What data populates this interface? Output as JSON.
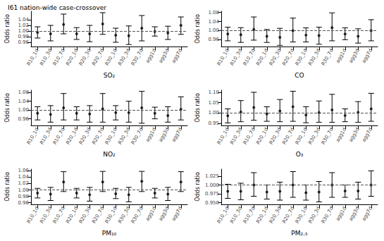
{
  "title": "I61 nation-wide case-crossover",
  "chart_data": [
    {
      "type": "errorbar",
      "x_label": "SO₂",
      "y_label": "Odds ratio",
      "color": "#000000",
      "reference_line": 1,
      "categories": [
        "R10_1d",
        "R10_3d",
        "R10_7d",
        "R20_1d",
        "R20_3d",
        "R20_7d",
        "R30_1d",
        "R30_3d",
        "R30_7d",
        "agg1d",
        "agg3d",
        "agg7d"
      ],
      "values": [
        0.995,
        0.99,
        1.023,
        0.99,
        0.99,
        1.025,
        0.985,
        0.983,
        1.01,
        0.998,
        0.993,
        1.02
      ],
      "lower": [
        0.975,
        0.965,
        0.99,
        0.97,
        0.962,
        0.988,
        0.96,
        0.952,
        0.965,
        0.982,
        0.97,
        0.988
      ],
      "upper": [
        1.015,
        1.02,
        1.06,
        1.012,
        1.02,
        1.065,
        1.01,
        1.018,
        1.055,
        1.015,
        1.017,
        1.05
      ],
      "ylim": [
        0.945,
        1.07
      ],
      "yticks": [
        0.96,
        0.98,
        {
          "value": 1,
          "label": "1.00"
        },
        1.02,
        1.04
      ]
    },
    {
      "type": "errorbar",
      "x_label": "CO",
      "y_label": "Odds ratio",
      "color": "#000000",
      "reference_line": 1,
      "categories": [
        "R10_1d",
        "R10_3d",
        "R10_7d",
        "R20_1d",
        "R20_3d",
        "R20_7d",
        "R30_1d",
        "R30_3d",
        "R30_7d",
        "agg1d",
        "agg3d",
        "agg7d"
      ],
      "values": [
        0.985,
        0.982,
        1.005,
        0.975,
        0.97,
        1.0,
        0.98,
        0.978,
        1.013,
        0.985,
        0.975,
        1.0
      ],
      "lower": [
        0.955,
        0.948,
        0.958,
        0.948,
        0.935,
        0.95,
        0.95,
        0.94,
        0.955,
        0.96,
        0.945,
        0.955
      ],
      "upper": [
        1.015,
        1.013,
        1.06,
        1.005,
        1.01,
        1.055,
        1.012,
        1.015,
        1.078,
        1.012,
        1.008,
        1.048
      ],
      "ylim": [
        0.93,
        1.085
      ],
      "yticks": [
        0.96,
        {
          "value": 1,
          "label": "1.00"
        },
        1.04,
        1.08
      ]
    },
    {
      "type": "errorbar",
      "x_label": "NO₂",
      "y_label": "Odds ratio",
      "color": "#000000",
      "reference_line": 1,
      "categories": [
        "R10_1d",
        "R10_3d",
        "R10_7d",
        "R20_1d",
        "R20_3d",
        "R20_7d",
        "R30_1d",
        "R30_3d",
        "R30_7d",
        "agg1d",
        "agg3d",
        "agg7d"
      ],
      "values": [
        0.985,
        0.98,
        1.01,
        0.985,
        0.982,
        1.005,
        0.988,
        0.988,
        1.01,
        0.985,
        0.975,
        1.003
      ],
      "lower": [
        0.955,
        0.945,
        0.955,
        0.955,
        0.945,
        0.945,
        0.955,
        0.945,
        0.94,
        0.96,
        0.945,
        0.955
      ],
      "upper": [
        1.015,
        1.02,
        1.075,
        1.015,
        1.02,
        1.075,
        1.02,
        1.04,
        1.085,
        1.013,
        1.015,
        1.06
      ],
      "ylim": [
        0.93,
        1.09
      ],
      "yticks": [
        0.96,
        {
          "value": 1,
          "label": "1.00"
        },
        1.04,
        1.08
      ]
    },
    {
      "type": "errorbar",
      "x_label": "O₃",
      "y_label": "Odds ratio",
      "color": "#000000",
      "reference_line": 1,
      "categories": [
        "R10_1d",
        "R10_3d",
        "R10_7d",
        "R20_1d",
        "R20_3d",
        "R20_7d",
        "R30_1d",
        "R30_3d",
        "R30_7d",
        "agg1d",
        "agg3d",
        "agg7d"
      ],
      "values": [
        0.987,
        1.005,
        1.027,
        0.995,
        1.01,
        1.03,
        0.99,
        1.002,
        1.015,
        0.988,
        1.003,
        1.02
      ],
      "lower": [
        0.952,
        0.958,
        0.965,
        0.96,
        0.958,
        0.96,
        0.953,
        0.955,
        0.955,
        0.958,
        0.955,
        0.96
      ],
      "upper": [
        1.02,
        1.06,
        1.1,
        1.03,
        1.065,
        1.105,
        1.03,
        1.058,
        1.09,
        1.02,
        1.055,
        1.095
      ],
      "ylim": [
        0.94,
        1.11
      ],
      "yticks": [
        0.95,
        {
          "value": 1,
          "label": "1.00"
        },
        1.05,
        {
          "value": 1.1,
          "label": "1.10"
        }
      ]
    },
    {
      "type": "errorbar",
      "x_label": "PM₁₀",
      "y_label": "Odds ratio",
      "color": "#000000",
      "reference_line": 1,
      "categories": [
        "R10_1d",
        "R10_3d",
        "R10_7d",
        "R20_1d",
        "R20_3d",
        "R20_7d",
        "R30_1d",
        "R30_3d",
        "R30_7d",
        "agg1d",
        "agg3d",
        "agg7d"
      ],
      "values": [
        0.99,
        0.987,
        1.025,
        0.99,
        0.985,
        1.025,
        0.988,
        0.985,
        1.027,
        0.99,
        0.987,
        1.025
      ],
      "lower": [
        0.975,
        0.967,
        0.995,
        0.975,
        0.965,
        0.995,
        0.973,
        0.963,
        0.995,
        0.975,
        0.967,
        0.995
      ],
      "upper": [
        1.005,
        1.008,
        1.057,
        1.005,
        1.008,
        1.058,
        1.005,
        1.008,
        1.058,
        1.005,
        1.008,
        1.057
      ],
      "ylim": [
        0.955,
        1.065
      ],
      "yticks": [
        0.96,
        0.98,
        {
          "value": 1,
          "label": "1.00"
        },
        1.02,
        1.04,
        1.06
      ]
    },
    {
      "type": "errorbar",
      "x_label": "PM₂.₅",
      "y_label": "Odds ratio",
      "color": "#000000",
      "reference_line": 1,
      "categories": [
        "R10_1d",
        "R10_3d",
        "R10_7d",
        "R20_1d",
        "R20_3d",
        "R20_7d",
        "R30_1d",
        "R30_3d",
        "R30_7d",
        "agg1d",
        "agg3d",
        "agg7d"
      ],
      "values": [
        0.982,
        0.982,
        1.0,
        0.98,
        0.982,
        1.0,
        0.978,
        0.98,
        1.0,
        0.983,
        0.983,
        1.0
      ],
      "lower": [
        0.962,
        0.958,
        0.968,
        0.96,
        0.957,
        0.965,
        0.957,
        0.952,
        0.965,
        0.965,
        0.96,
        0.968
      ],
      "upper": [
        1.002,
        1.005,
        1.035,
        1.0,
        1.008,
        1.038,
        1.0,
        1.01,
        1.035,
        1.0,
        1.008,
        1.04
      ],
      "ylim": [
        0.945,
        1.045
      ],
      "yticks": [
        {
          "value": 0.95,
          "label": "0.950"
        },
        {
          "value": 0.975,
          "label": "0.975"
        },
        {
          "value": 1,
          "label": "1.000"
        },
        {
          "value": 1.025,
          "label": "1.025"
        }
      ]
    }
  ]
}
